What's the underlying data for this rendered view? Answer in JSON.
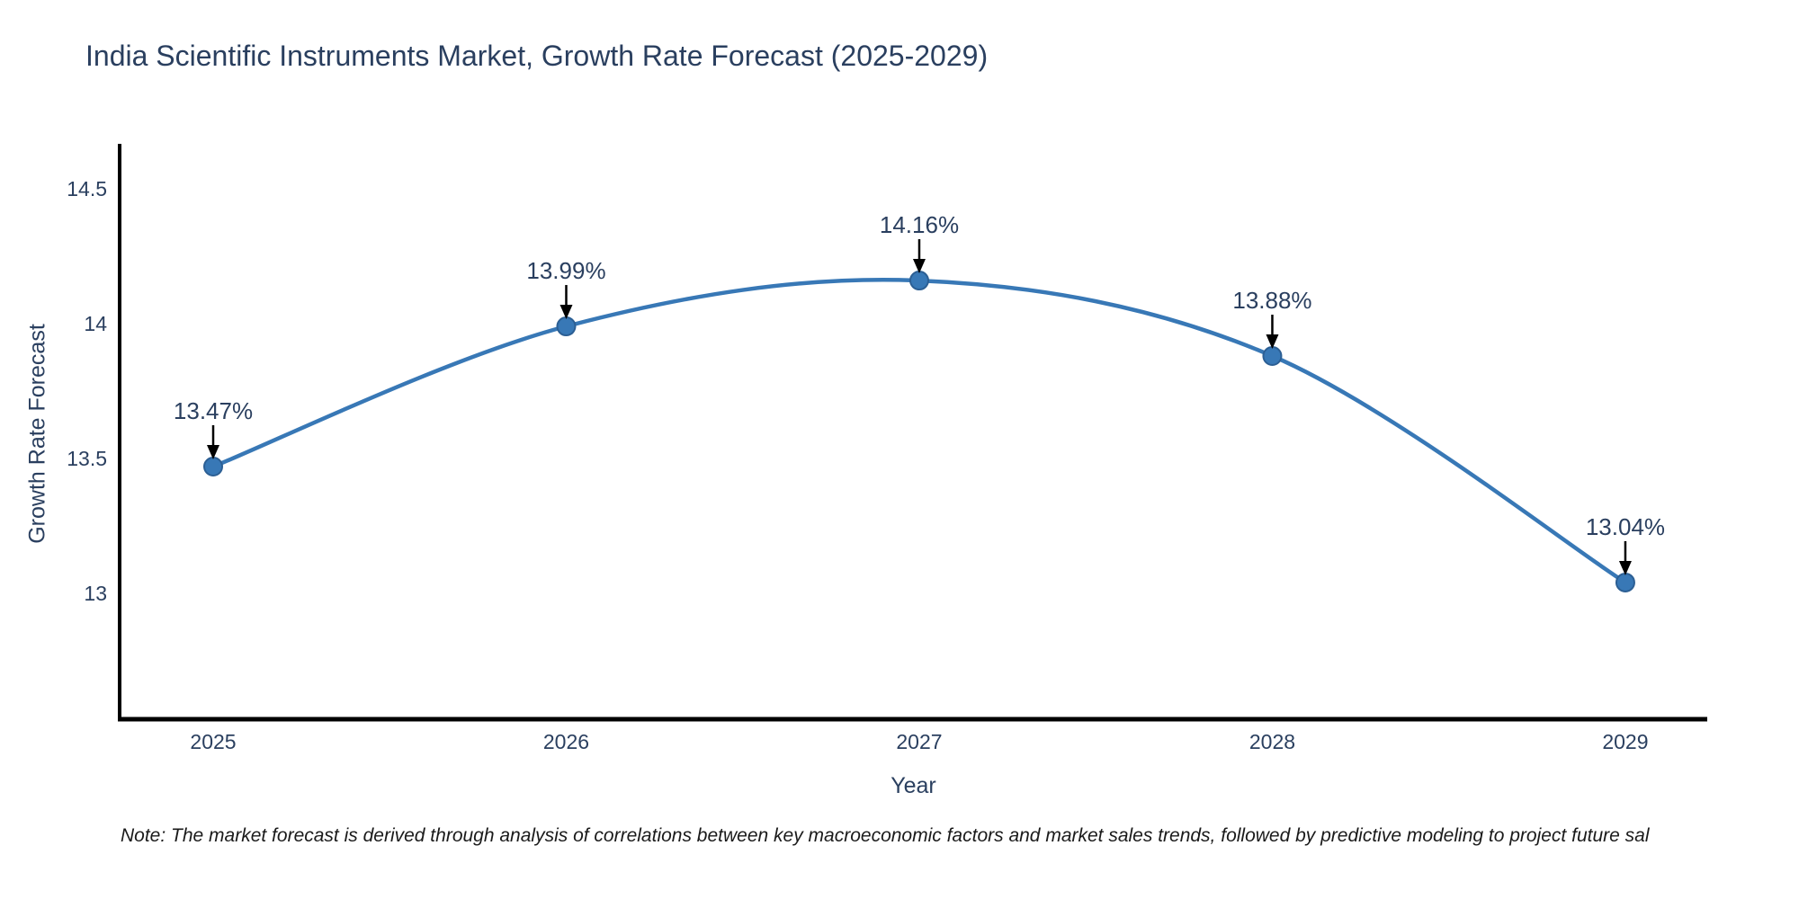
{
  "page": {
    "background": "#ffffff"
  },
  "chart_data": {
    "type": "line",
    "title": "India Scientific Instruments Market, Growth Rate Forecast (2025-2029)",
    "xlabel": "Year",
    "ylabel": "Growth Rate Forecast",
    "x": [
      2025,
      2026,
      2027,
      2028,
      2029
    ],
    "values": [
      13.47,
      13.99,
      14.16,
      13.88,
      13.04
    ],
    "point_labels": [
      "13.47%",
      "13.99%",
      "14.16%",
      "13.88%",
      "13.04%"
    ],
    "x_tick_labels": [
      "2025",
      "2026",
      "2027",
      "2028",
      "2029"
    ],
    "y_ticks": [
      13,
      13.5,
      14,
      14.5
    ],
    "y_tick_labels": [
      "13",
      "13.5",
      "14",
      "14.5"
    ],
    "xlim": [
      2024.735,
      2029.232
    ],
    "ylim": [
      12.533,
      14.667
    ],
    "grid": false,
    "legend": "none",
    "line_shape": "spline",
    "colors": {
      "line": "#3878b6",
      "marker_fill": "#3878b6",
      "marker_edge": "#2c5f94",
      "axis_line": "#000000",
      "tick_text": "#2a3f5f",
      "annotation_text": "#2a3f5f",
      "annotation_arrow": "#000000"
    }
  },
  "note": {
    "text": "Note: The market forecast is derived through analysis of correlations between key macroeconomic factors and market sales trends, followed by predictive modeling to project future sal"
  }
}
